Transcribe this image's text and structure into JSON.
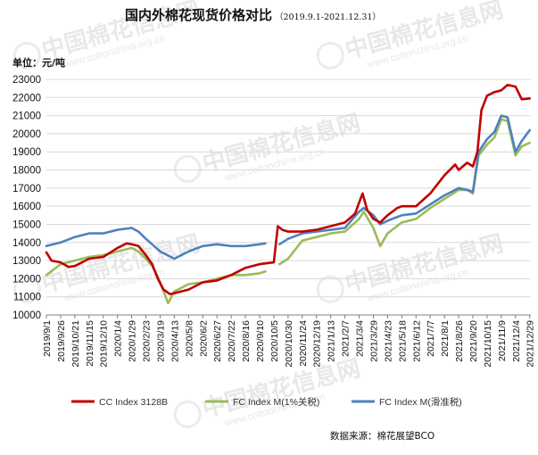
{
  "title": "国内外棉花现货价格对比",
  "subtitle": "（2019.9.1-2021.12.31）",
  "unit_label": "单位：元/吨",
  "source": "数据来源：棉花展望BCO",
  "watermark": {
    "text": "中国棉花信息网",
    "url": "www.cottonchina.org.cn"
  },
  "chart_data": {
    "type": "line",
    "xlabel": "",
    "ylabel": "单位：元/吨",
    "ylim": [
      10000,
      23000
    ],
    "yticks": [
      10000,
      11000,
      12000,
      13000,
      14000,
      15000,
      16000,
      17000,
      18000,
      19000,
      20000,
      21000,
      22000,
      23000
    ],
    "x_start": "2019/9/1",
    "x_end": "2021/12/31",
    "x_ticks": [
      "2019/9/1",
      "2019/9/26",
      "2019/10/21",
      "2019/11/15",
      "2019/12/10",
      "2020/1/4",
      "2020/1/29",
      "2020/2/23",
      "2020/3/19",
      "2020/4/13",
      "2020/5/8",
      "2020/6/2",
      "2020/6/27",
      "2020/7/22",
      "2020/8/16",
      "2020/9/10",
      "2020/10/5",
      "2020/10/30",
      "2020/11/24",
      "2020/12/19",
      "2021/1/13",
      "2021/2/7",
      "2021/3/4",
      "2021/3/29",
      "2021/4/23",
      "2021/5/18",
      "2021/6/12",
      "2021/7/7",
      "2021/8/1",
      "2021/8/26",
      "2021/9/20",
      "2021/10/15",
      "2021/11/9",
      "2021/12/4",
      "2021/12/29"
    ],
    "grid": true,
    "legend_position": "bottom",
    "series": [
      {
        "name": "CC Index 3128B",
        "color": "#c00000",
        "points": [
          [
            "2019/9/1",
            13450
          ],
          [
            "2019/9/10",
            13000
          ],
          [
            "2019/9/26",
            12900
          ],
          [
            "2019/10/10",
            12650
          ],
          [
            "2019/10/21",
            12700
          ],
          [
            "2019/11/15",
            13100
          ],
          [
            "2019/12/10",
            13200
          ],
          [
            "2020/1/4",
            13700
          ],
          [
            "2020/1/20",
            13950
          ],
          [
            "2020/1/29",
            13900
          ],
          [
            "2020/2/10",
            13800
          ],
          [
            "2020/2/23",
            13300
          ],
          [
            "2020/3/5",
            12800
          ],
          [
            "2020/3/15",
            12000
          ],
          [
            "2020/3/25",
            11400
          ],
          [
            "2020/4/5",
            11150
          ],
          [
            "2020/4/13",
            11200
          ],
          [
            "2020/5/8",
            11400
          ],
          [
            "2020/6/2",
            11800
          ],
          [
            "2020/6/27",
            11900
          ],
          [
            "2020/7/22",
            12200
          ],
          [
            "2020/8/16",
            12600
          ],
          [
            "2020/9/10",
            12800
          ],
          [
            "2020/10/5",
            12900
          ],
          [
            "2020/10/12",
            14900
          ],
          [
            "2020/10/20",
            14700
          ],
          [
            "2020/10/30",
            14600
          ],
          [
            "2020/11/24",
            14600
          ],
          [
            "2020/12/19",
            14700
          ],
          [
            "2021/1/13",
            14900
          ],
          [
            "2021/2/7",
            15100
          ],
          [
            "2021/2/25",
            15600
          ],
          [
            "2021/3/4",
            16200
          ],
          [
            "2021/3/10",
            16700
          ],
          [
            "2021/3/18",
            15800
          ],
          [
            "2021/3/29",
            15300
          ],
          [
            "2021/4/10",
            15100
          ],
          [
            "2021/4/23",
            15500
          ],
          [
            "2021/5/10",
            15900
          ],
          [
            "2021/5/18",
            16000
          ],
          [
            "2021/6/12",
            16000
          ],
          [
            "2021/7/7",
            16700
          ],
          [
            "2021/8/1",
            17700
          ],
          [
            "2021/8/20",
            18300
          ],
          [
            "2021/8/26",
            18000
          ],
          [
            "2021/9/10",
            18400
          ],
          [
            "2021/9/20",
            18200
          ],
          [
            "2021/9/28",
            19000
          ],
          [
            "2021/10/5",
            21300
          ],
          [
            "2021/10/15",
            22100
          ],
          [
            "2021/10/28",
            22300
          ],
          [
            "2021/11/9",
            22400
          ],
          [
            "2021/11/20",
            22700
          ],
          [
            "2021/12/4",
            22600
          ],
          [
            "2021/12/15",
            21900
          ],
          [
            "2021/12/29",
            21950
          ]
        ]
      },
      {
        "name": "FC Index M(1%关税)",
        "color": "#9bbb59",
        "points": [
          [
            "2019/9/1",
            12200
          ],
          [
            "2019/9/26",
            12800
          ],
          [
            "2019/10/21",
            13000
          ],
          [
            "2019/11/15",
            13200
          ],
          [
            "2019/12/10",
            13300
          ],
          [
            "2020/1/4",
            13500
          ],
          [
            "2020/1/29",
            13700
          ],
          [
            "2020/2/10",
            13500
          ],
          [
            "2020/2/23",
            13100
          ],
          [
            "2020/3/5",
            12700
          ],
          [
            "2020/3/15",
            12100
          ],
          [
            "2020/3/25",
            11300
          ],
          [
            "2020/4/2",
            10650
          ],
          [
            "2020/4/13",
            11300
          ],
          [
            "2020/5/8",
            11700
          ],
          [
            "2020/6/2",
            11800
          ],
          [
            "2020/6/27",
            12000
          ],
          [
            "2020/7/22",
            12200
          ],
          [
            "2020/8/16",
            12200
          ],
          [
            "2020/9/10",
            12300
          ],
          [
            "2020/9/20",
            12400
          ],
          [
            "2020/10/5",
            null
          ],
          [
            "2020/10/15",
            12800
          ],
          [
            "2020/10/30",
            13100
          ],
          [
            "2020/11/24",
            14100
          ],
          [
            "2020/12/19",
            14300
          ],
          [
            "2021/1/13",
            14500
          ],
          [
            "2021/2/7",
            14600
          ],
          [
            "2021/3/4",
            15300
          ],
          [
            "2021/3/12",
            15700
          ],
          [
            "2021/3/29",
            14800
          ],
          [
            "2021/4/10",
            13800
          ],
          [
            "2021/4/23",
            14500
          ],
          [
            "2021/5/18",
            15100
          ],
          [
            "2021/6/12",
            15300
          ],
          [
            "2021/7/7",
            15900
          ],
          [
            "2021/8/1",
            16400
          ],
          [
            "2021/8/26",
            16900
          ],
          [
            "2021/9/10",
            16900
          ],
          [
            "2021/9/20",
            16700
          ],
          [
            "2021/9/30",
            18800
          ],
          [
            "2021/10/15",
            19400
          ],
          [
            "2021/10/28",
            19800
          ],
          [
            "2021/11/9",
            20800
          ],
          [
            "2021/11/20",
            20700
          ],
          [
            "2021/12/4",
            18800
          ],
          [
            "2021/12/15",
            19300
          ],
          [
            "2021/12/29",
            19500
          ]
        ]
      },
      {
        "name": "FC Index M(滑准税)",
        "color": "#4f81bd",
        "points": [
          [
            "2019/9/1",
            13800
          ],
          [
            "2019/9/26",
            14000
          ],
          [
            "2019/10/21",
            14300
          ],
          [
            "2019/11/15",
            14500
          ],
          [
            "2019/12/10",
            14500
          ],
          [
            "2020/1/4",
            14700
          ],
          [
            "2020/1/29",
            14800
          ],
          [
            "2020/2/10",
            14600
          ],
          [
            "2020/2/23",
            14200
          ],
          [
            "2020/3/5",
            13900
          ],
          [
            "2020/3/19",
            13500
          ],
          [
            "2020/4/13",
            13100
          ],
          [
            "2020/5/8",
            13500
          ],
          [
            "2020/6/2",
            13800
          ],
          [
            "2020/6/27",
            13900
          ],
          [
            "2020/7/22",
            13800
          ],
          [
            "2020/8/16",
            13800
          ],
          [
            "2020/9/10",
            13900
          ],
          [
            "2020/9/20",
            13950
          ],
          [
            "2020/10/5",
            null
          ],
          [
            "2020/10/15",
            13900
          ],
          [
            "2020/10/30",
            14200
          ],
          [
            "2020/11/24",
            14500
          ],
          [
            "2020/12/19",
            14600
          ],
          [
            "2021/1/13",
            14700
          ],
          [
            "2021/2/7",
            14800
          ],
          [
            "2021/3/4",
            15700
          ],
          [
            "2021/3/12",
            15900
          ],
          [
            "2021/3/29",
            15500
          ],
          [
            "2021/4/10",
            15000
          ],
          [
            "2021/4/23",
            15200
          ],
          [
            "2021/5/18",
            15500
          ],
          [
            "2021/6/12",
            15600
          ],
          [
            "2021/7/7",
            16100
          ],
          [
            "2021/8/1",
            16600
          ],
          [
            "2021/8/26",
            17000
          ],
          [
            "2021/9/10",
            16900
          ],
          [
            "2021/9/20",
            16800
          ],
          [
            "2021/9/30",
            19000
          ],
          [
            "2021/10/15",
            19700
          ],
          [
            "2021/10/28",
            20100
          ],
          [
            "2021/11/9",
            21000
          ],
          [
            "2021/11/20",
            20900
          ],
          [
            "2021/12/4",
            19000
          ],
          [
            "2021/12/15",
            19600
          ],
          [
            "2021/12/29",
            20200
          ]
        ]
      }
    ]
  }
}
